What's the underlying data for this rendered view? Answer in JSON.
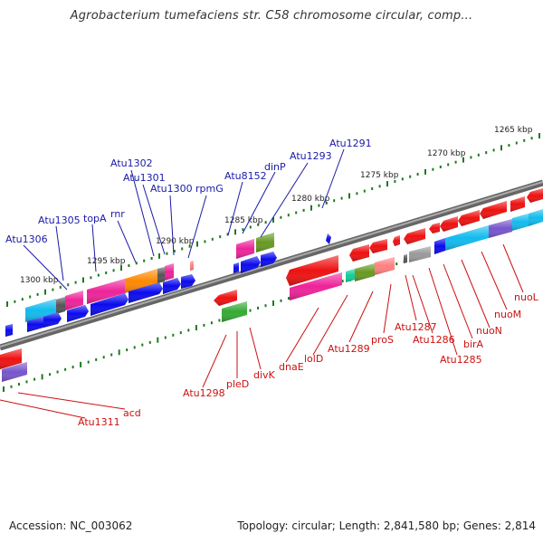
{
  "header": {
    "title": "Agrobacterium tumefaciens str. C58 chromosome circular, comp..."
  },
  "footer": {
    "accession": "Accession: NC_003062",
    "summary": "Topology: circular; Length: 2,841,580 bp; Genes: 2,814"
  },
  "scale": {
    "ticks": [
      "1265 kbp",
      "1270 kbp",
      "1275 kbp",
      "1280 kbp",
      "1285 kbp",
      "1290 kbp",
      "1295 kbp",
      "1300 kbp"
    ]
  },
  "top_labels": [
    "Atu1291",
    "Atu1293",
    "dinP",
    "Atu8152",
    "rpmG",
    "Atu1300",
    "Atu1301",
    "Atu1302",
    "rnr",
    "topA",
    "Atu1305",
    "Atu1306"
  ],
  "bottom_labels": [
    "nuoL",
    "nuoM",
    "nuoN",
    "birA",
    "Atu1285",
    "Atu1286",
    "Atu1287",
    "proS",
    "Atu1289",
    "lolD",
    "dnaE",
    "divK",
    "pleD",
    "Atu1298",
    "acd",
    "Atu1311"
  ],
  "colors": {
    "backbone": "#7a7a7a",
    "tick": "#1e7a1e",
    "label_top": "#1a1aa8",
    "label_bottom": "#cc1111",
    "gene_blue": "#0a0aee",
    "gene_red": "#ee1111",
    "gene_magenta": "#ee2299",
    "gene_cyan": "#11bbee",
    "gene_orange": "#ff8800",
    "gene_green": "#33aa33",
    "gene_olive": "#669922",
    "gene_salmon": "#ff8080",
    "gene_gray": "#999999",
    "gene_purple": "#7755cc",
    "gene_teal": "#11cc99"
  }
}
